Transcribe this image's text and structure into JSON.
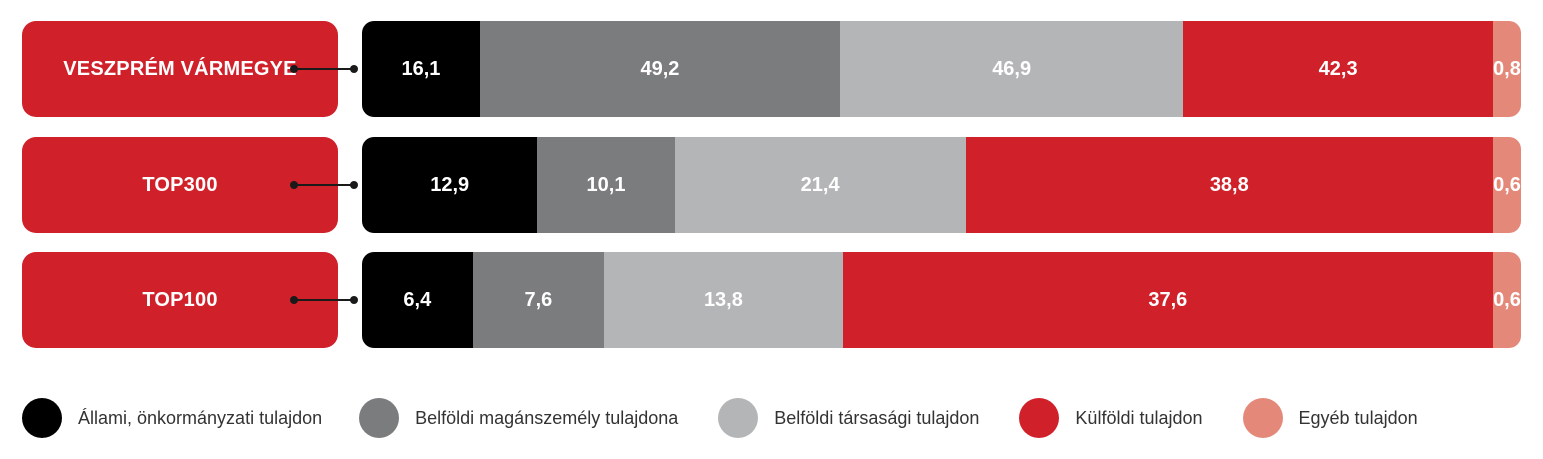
{
  "chart_data": {
    "type": "bar",
    "orientation": "horizontal",
    "stacked": true,
    "categories": [
      "VESZPRÉM VÁRMEGYE",
      "TOP300",
      "TOP100"
    ],
    "series": [
      {
        "name": "Állami, önkormányzati tulajdon",
        "color": "#000000",
        "values": [
          "16,1",
          "12,9",
          "6,4"
        ]
      },
      {
        "name": "Belföldi magánszemély tulajdona",
        "color": "#7b7c7e",
        "values": [
          "49,2",
          "10,1",
          "7,6"
        ]
      },
      {
        "name": "Belföldi társasági tulajdon",
        "color": "#b4b5b7",
        "values": [
          "46,9",
          "21,4",
          "13,8"
        ]
      },
      {
        "name": "Külföldi tulajdon",
        "color": "#d0212a",
        "values": [
          "42,3",
          "38,8",
          "37,6"
        ]
      },
      {
        "name": "Egyéb tulajdon",
        "color": "#e4897a",
        "values": [
          "0,8",
          "0,6",
          "0,6"
        ]
      }
    ],
    "legend_position": "bottom"
  }
}
